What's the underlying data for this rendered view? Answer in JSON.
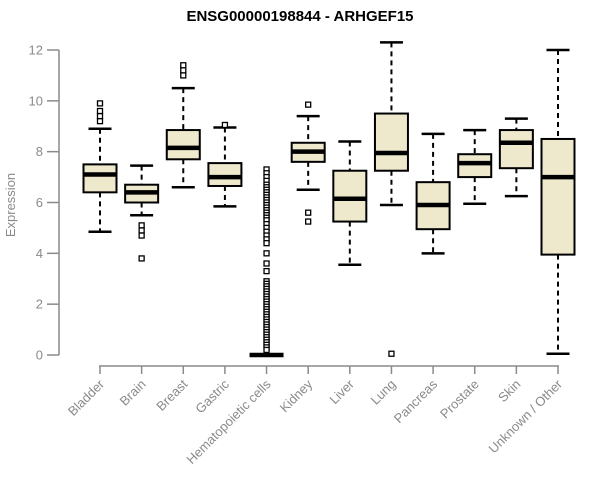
{
  "chart_data": {
    "type": "boxplot",
    "title": "ENSG00000198844 - ARHGEF15",
    "ylabel": "Expression",
    "xlabel": "",
    "ylim": [
      0,
      12.4
    ],
    "yticks": [
      0,
      2,
      4,
      6,
      8,
      10,
      12
    ],
    "grid": false,
    "legend": "none",
    "categories": [
      "Bladder",
      "Brain",
      "Breast",
      "Gastric",
      "Hematopoietic cells",
      "Kidney",
      "Liver",
      "Lung",
      "Pancreas",
      "Prostate",
      "Skin",
      "Unknown / Other"
    ],
    "series": [
      {
        "name": "Bladder",
        "whisker_low": 4.85,
        "q1": 6.4,
        "median": 7.1,
        "q3": 7.5,
        "whisker_high": 8.9,
        "outliers": [
          9.2,
          9.4,
          9.6,
          9.9
        ]
      },
      {
        "name": "Brain",
        "whisker_low": 5.5,
        "q1": 6.0,
        "median": 6.4,
        "q3": 6.7,
        "whisker_high": 7.45,
        "outliers": [
          5.1,
          4.9,
          4.7,
          3.8
        ]
      },
      {
        "name": "Breast",
        "whisker_low": 6.6,
        "q1": 7.7,
        "median": 8.15,
        "q3": 8.85,
        "whisker_high": 10.5,
        "outliers": [
          11.0,
          11.2,
          11.4
        ]
      },
      {
        "name": "Gastric",
        "whisker_low": 5.85,
        "q1": 6.65,
        "median": 7.0,
        "q3": 7.55,
        "whisker_high": 8.95,
        "outliers": [
          9.05
        ]
      },
      {
        "name": "Hematopoietic cells",
        "whisker_low": 0,
        "q1": 0,
        "median": 0,
        "q3": 0,
        "whisker_high": 0,
        "outliers": [
          7.3,
          7.15,
          7.0,
          6.85,
          6.7,
          6.6,
          6.5,
          6.4,
          6.3,
          6.2,
          6.1,
          6.0,
          5.9,
          5.8,
          5.7,
          5.6,
          5.5,
          5.4,
          5.3,
          5.15,
          5.0,
          4.85,
          4.7,
          4.55,
          4.4,
          4.0,
          3.6,
          3.3,
          2.9,
          2.8,
          2.7,
          2.6,
          2.5,
          2.4,
          2.3,
          2.2,
          2.1,
          2.0,
          1.9,
          1.8,
          1.7,
          1.6,
          1.5,
          1.4,
          1.3,
          1.2,
          1.1,
          1.0,
          0.9,
          0.8,
          0.7,
          0.6,
          0.5,
          0.4,
          0.3,
          0.2
        ]
      },
      {
        "name": "Kidney",
        "whisker_low": 6.5,
        "q1": 7.6,
        "median": 8.0,
        "q3": 8.35,
        "whisker_high": 9.4,
        "outliers": [
          9.85,
          5.6,
          5.25
        ]
      },
      {
        "name": "Liver",
        "whisker_low": 3.55,
        "q1": 5.25,
        "median": 6.15,
        "q3": 7.25,
        "whisker_high": 8.4,
        "outliers": []
      },
      {
        "name": "Lung",
        "whisker_low": 5.9,
        "q1": 7.25,
        "median": 7.95,
        "q3": 9.5,
        "whisker_high": 12.3,
        "outliers": [
          0.05
        ]
      },
      {
        "name": "Pancreas",
        "whisker_low": 4.0,
        "q1": 4.95,
        "median": 5.9,
        "q3": 6.8,
        "whisker_high": 8.7,
        "outliers": []
      },
      {
        "name": "Prostate",
        "whisker_low": 5.95,
        "q1": 7.0,
        "median": 7.55,
        "q3": 7.9,
        "whisker_high": 8.85,
        "outliers": []
      },
      {
        "name": "Skin",
        "whisker_low": 6.25,
        "q1": 7.35,
        "median": 8.35,
        "q3": 8.85,
        "whisker_high": 9.3,
        "outliers": []
      },
      {
        "name": "Unknown / Other",
        "whisker_low": 0.05,
        "q1": 3.95,
        "median": 7.0,
        "q3": 8.5,
        "whisker_high": 12.0,
        "outliers": []
      }
    ],
    "colors": {
      "box_fill": "#EEE8CD",
      "box_stroke": "#000000",
      "median": "#000000",
      "whisker": "#000000",
      "axis": "#8a8a8a",
      "tick_label": "#8a8a8a",
      "title": "#000000",
      "background": "#ffffff"
    }
  }
}
